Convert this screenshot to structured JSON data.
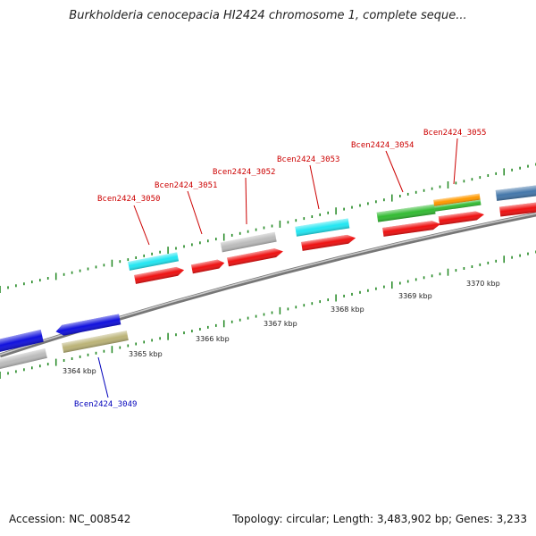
{
  "title": "Burkholderia cenocepacia HI2424 chromosome 1, complete seque...",
  "accession_text": "Accession: NC_008542",
  "summary_text": "Topology: circular; Length: 3,483,902 bp; Genes: 3,233",
  "colors": {
    "upper_label": "#cc0000",
    "lower_label": "#0000bb",
    "tick": "#228822",
    "backbone": "#888888",
    "cyan": "#22e6f2",
    "red": "#ee1111",
    "gray": "#bbbbbb",
    "green": "#33bb33",
    "orange": "#ff9900",
    "steel": "#4477aa",
    "blue": "#1111dd",
    "olive": "#bbb377"
  },
  "scale_labels": [
    "3364 kbp",
    "3365 kbp",
    "3366 kbp",
    "3367 kbp",
    "3368 kbp",
    "3369 kbp",
    "3370 kbp"
  ],
  "gene_labels_upper": [
    "Bcen2424_3050",
    "Bcen2424_3051",
    "Bcen2424_3052",
    "Bcen2424_3053",
    "Bcen2424_3054",
    "Bcen2424_3055"
  ],
  "gene_labels_lower": [
    "Bcen2424_3049"
  ]
}
